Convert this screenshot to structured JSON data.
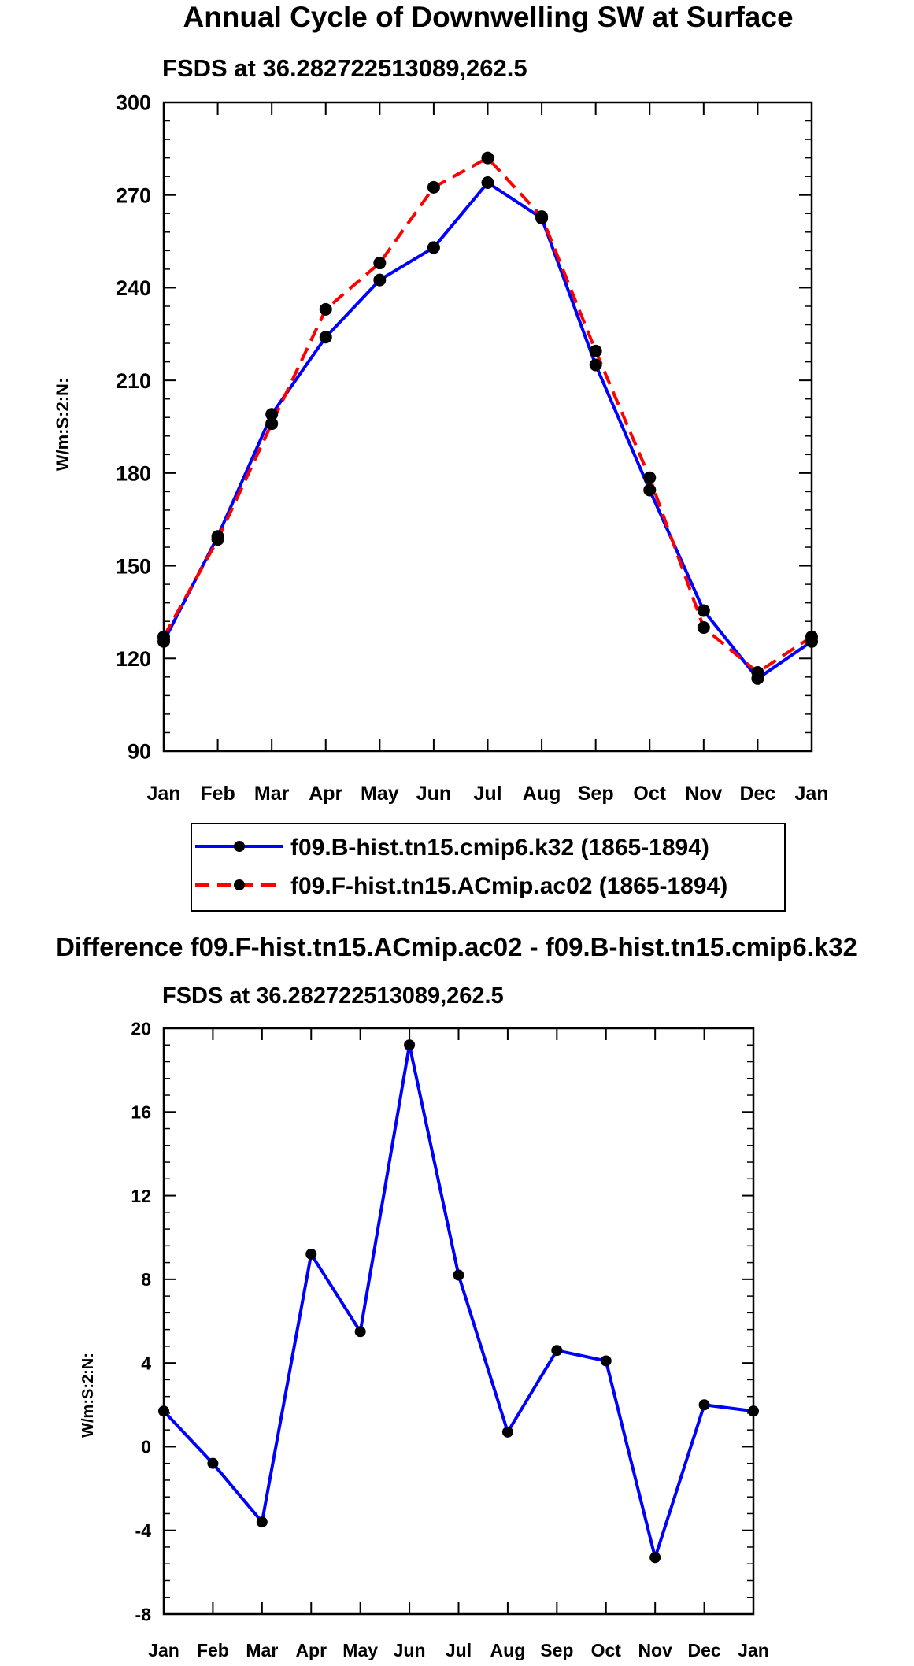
{
  "chart_data": [
    {
      "type": "line",
      "title": "Annual Cycle of Downwelling SW at Surface",
      "subtitle": "FSDS at 36.282722513089,262.5",
      "xlabel": "",
      "ylabel": "W/m:S:2:N:",
      "categories": [
        "Jan",
        "Feb",
        "Mar",
        "Apr",
        "May",
        "Jun",
        "Jul",
        "Aug",
        "Sep",
        "Oct",
        "Nov",
        "Dec",
        "Jan"
      ],
      "ylim": [
        90,
        300
      ],
      "yticks": [
        90,
        120,
        150,
        180,
        210,
        240,
        270,
        300
      ],
      "ytick_labels": [
        "90",
        "120",
        "150",
        "180",
        "210",
        "240",
        "270",
        "300"
      ],
      "series": [
        {
          "name": "f09.B-hist.tn15.cmip6.k32 (1865-1894)",
          "color": "#0000ff",
          "dash": "solid",
          "values": [
            125.5,
            159.5,
            199.0,
            224.0,
            242.5,
            253.0,
            274.0,
            262.5,
            215.0,
            174.5,
            135.5,
            113.5,
            125.5
          ]
        },
        {
          "name": "f09.F-hist.tn15.ACmip.ac02 (1865-1894)",
          "color": "#ff0000",
          "dash": "dashed",
          "values": [
            127.0,
            158.5,
            196.0,
            233.0,
            248.0,
            272.5,
            282.0,
            263.0,
            219.5,
            178.5,
            130.0,
            115.5,
            127.0
          ]
        }
      ],
      "legend": "bottom-center"
    },
    {
      "type": "line",
      "title": "Difference f09.F-hist.tn15.ACmip.ac02 - f09.B-hist.tn15.cmip6.k32",
      "subtitle": "FSDS at 36.282722513089,262.5",
      "xlabel": "",
      "ylabel": "W/m:S:2:N:",
      "categories": [
        "Jan",
        "Feb",
        "Mar",
        "Apr",
        "May",
        "Jun",
        "Jul",
        "Aug",
        "Sep",
        "Oct",
        "Nov",
        "Dec",
        "Jan"
      ],
      "ylim": [
        -8,
        20
      ],
      "yticks": [
        -8,
        -4,
        0,
        4,
        8,
        12,
        16,
        20
      ],
      "ytick_labels": [
        "-8",
        "-4",
        "0",
        "4",
        "8",
        "12",
        "16",
        "20"
      ],
      "series": [
        {
          "name": "difference",
          "color": "#0000ff",
          "dash": "solid",
          "values": [
            1.7,
            -0.8,
            -3.6,
            9.2,
            5.5,
            19.2,
            8.2,
            0.7,
            4.6,
            4.1,
            -5.3,
            2.0,
            1.7
          ]
        }
      ]
    }
  ]
}
